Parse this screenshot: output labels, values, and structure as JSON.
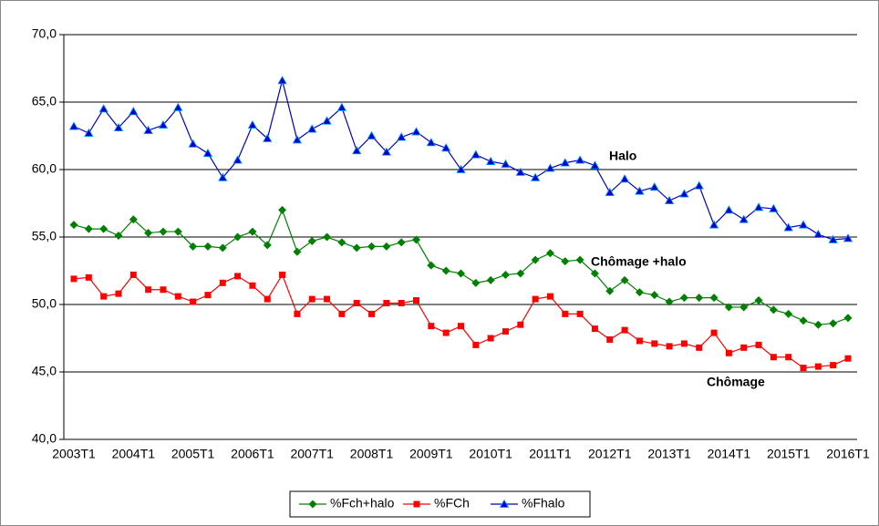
{
  "chart_data": {
    "type": "line",
    "categories": [
      "2003T1",
      null,
      null,
      null,
      "2004T1",
      null,
      null,
      null,
      "2005T1",
      null,
      null,
      null,
      "2006T1",
      null,
      null,
      null,
      "2007T1",
      null,
      null,
      null,
      "2008T1",
      null,
      null,
      null,
      "2009T1",
      null,
      null,
      null,
      "2010T1",
      null,
      null,
      null,
      "2011T1",
      null,
      null,
      null,
      "2012T1",
      null,
      null,
      null,
      "2013T1",
      null,
      null,
      null,
      "2014T1",
      null,
      null,
      null,
      "2015T1",
      null,
      null,
      null,
      "2016T1"
    ],
    "series": [
      {
        "name": "%Fch+halo",
        "color": "#008000",
        "marker": "diamond",
        "values": [
          55.9,
          55.6,
          55.6,
          55.1,
          56.3,
          55.3,
          55.4,
          55.4,
          54.3,
          54.3,
          54.2,
          55.0,
          55.4,
          54.4,
          57.0,
          53.9,
          54.7,
          55.0,
          54.6,
          54.2,
          54.3,
          54.3,
          54.6,
          54.8,
          52.9,
          52.5,
          52.3,
          51.6,
          51.8,
          52.2,
          52.3,
          53.3,
          53.8,
          53.2,
          53.3,
          52.3,
          51.0,
          51.8,
          50.9,
          50.7,
          50.2,
          50.5,
          50.5,
          50.5,
          49.8,
          49.8,
          50.3,
          49.6,
          49.3,
          48.8,
          48.5,
          48.6,
          49.0
        ]
      },
      {
        "name": "%FCh",
        "color": "#ff0000",
        "marker": "square",
        "values": [
          51.9,
          52.0,
          50.6,
          50.8,
          52.2,
          51.1,
          51.1,
          50.6,
          50.2,
          50.7,
          51.6,
          52.1,
          51.4,
          50.4,
          52.2,
          49.3,
          50.4,
          50.4,
          49.3,
          50.1,
          49.3,
          50.1,
          50.1,
          50.3,
          48.4,
          47.9,
          48.4,
          47.0,
          47.5,
          48.0,
          48.5,
          50.4,
          50.6,
          49.3,
          49.3,
          48.2,
          47.4,
          48.1,
          47.3,
          47.1,
          46.9,
          47.1,
          46.8,
          47.9,
          46.4,
          46.8,
          47.0,
          46.1,
          46.1,
          45.3,
          45.4,
          45.5,
          46.0
        ]
      },
      {
        "name": "%Fhalo",
        "color": "#0000cc",
        "marker": "triangle",
        "values": [
          63.2,
          62.7,
          64.5,
          63.1,
          64.3,
          62.9,
          63.3,
          64.6,
          61.9,
          61.2,
          59.4,
          60.7,
          63.3,
          62.3,
          66.6,
          62.2,
          63.0,
          63.6,
          64.6,
          61.4,
          62.5,
          61.3,
          62.4,
          62.8,
          62.0,
          61.6,
          60.0,
          61.1,
          60.6,
          60.4,
          59.8,
          59.4,
          60.1,
          60.5,
          60.7,
          60.3,
          58.3,
          59.3,
          58.4,
          58.7,
          57.7,
          58.2,
          58.8,
          55.9,
          57.0,
          56.3,
          57.2,
          57.1,
          55.7,
          55.9,
          55.2,
          54.8,
          54.9
        ]
      }
    ],
    "annotations": [
      "Halo",
      "Chômage +halo",
      "Chômage"
    ],
    "ylim": [
      40,
      70
    ],
    "yticks": [
      {
        "value": 40,
        "label": "40,0"
      },
      {
        "value": 45,
        "label": "45,0"
      },
      {
        "value": 50,
        "label": "50,0"
      },
      {
        "value": 55,
        "label": "55,0"
      },
      {
        "value": 60,
        "label": "60,0"
      },
      {
        "value": 65,
        "label": "65,0"
      },
      {
        "value": 70,
        "label": "70,0"
      }
    ],
    "grid": true,
    "legend": "bottom"
  }
}
